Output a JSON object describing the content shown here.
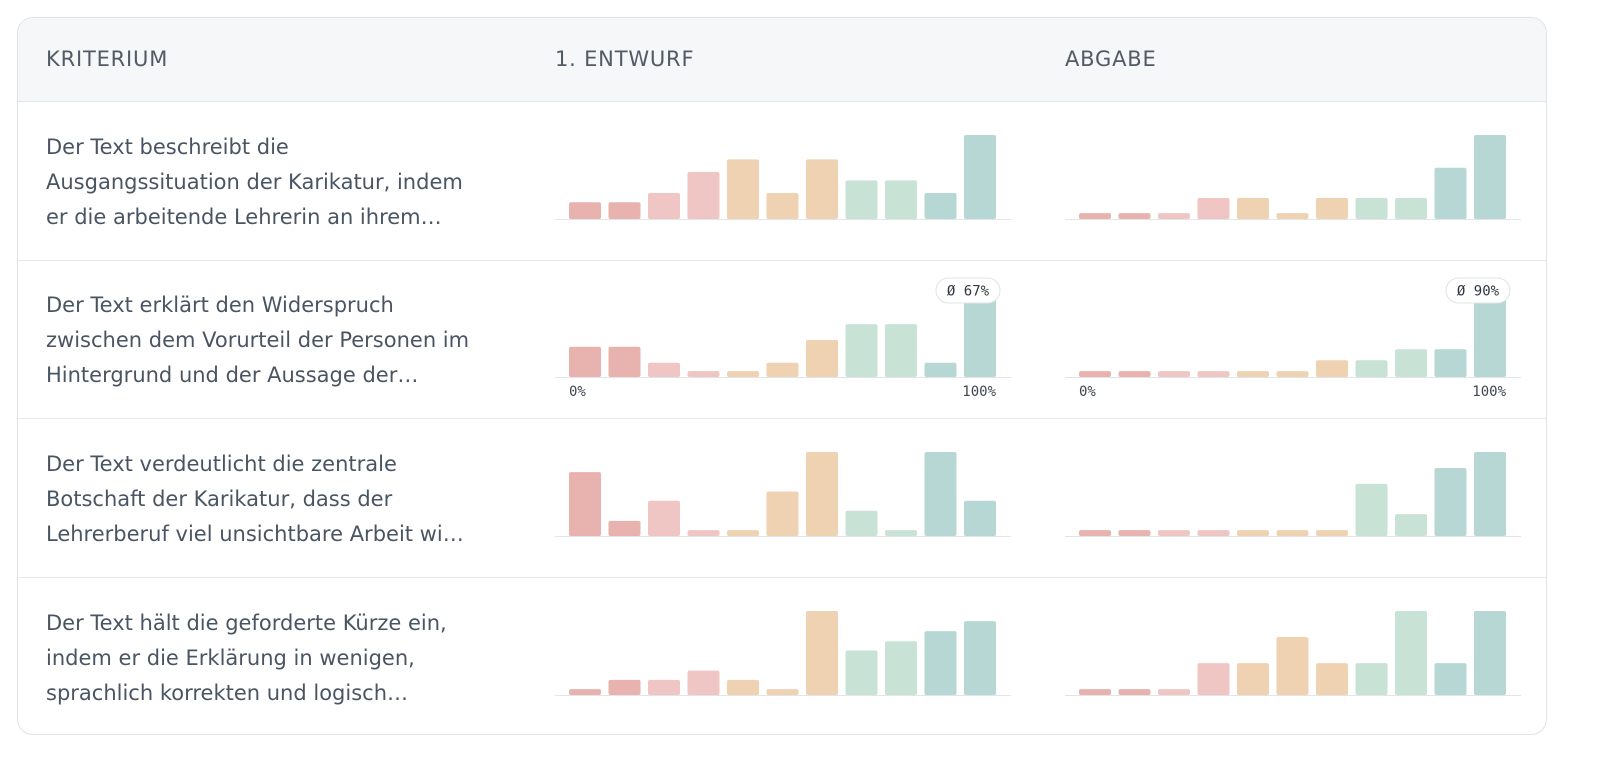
{
  "header": {
    "criterion": "KRITERIUM",
    "draft": "1. ENTWURF",
    "submission": "ABGABE"
  },
  "colors": {
    "bin_colors": [
      "#e8b2ae",
      "#e8b2ae",
      "#efc6c3",
      "#efc6c3",
      "#efd2b1",
      "#efd2b1",
      "#efd2b1",
      "#c9e2d6",
      "#c9e2d6",
      "#b7d7d4",
      "#b7d7d4"
    ],
    "baseline": "#e2e5e8"
  },
  "rows": [
    {
      "lines": [
        "Der Text beschreibt die",
        "Ausgangssituation der Karikatur, indem",
        "er die arbeitende Lehrerin an ihrem…"
      ]
    },
    {
      "lines": [
        "Der Text erklärt den Widerspruch",
        "zwischen dem Vorurteil der Personen im",
        "Hintergrund und der Aussage der…"
      ]
    },
    {
      "lines": [
        "Der Text verdeutlicht die zentrale",
        "Botschaft der Karikatur, dass der",
        "Lehrerberuf viel unsichtbare Arbeit wi…"
      ]
    },
    {
      "lines": [
        "Der Text hält die geforderte Kürze ein,",
        "indem er die Erklärung in wenigen,",
        "sprachlich korrekten und logisch…"
      ]
    }
  ],
  "chart_data": [
    {
      "type": "bar",
      "row": 0,
      "column": "1. ENTWURF",
      "categories": [
        "0%",
        "10%",
        "20%",
        "30%",
        "40%",
        "50%",
        "60%",
        "70%",
        "80%",
        "90%",
        "100%"
      ],
      "values": [
        2,
        2,
        3.1,
        5.6,
        7.1,
        3.1,
        7.1,
        4.6,
        4.6,
        3.1,
        10
      ],
      "ylim": [
        0,
        10
      ]
    },
    {
      "type": "bar",
      "row": 0,
      "column": "ABGABE",
      "categories": [
        "0%",
        "10%",
        "20%",
        "30%",
        "40%",
        "50%",
        "60%",
        "70%",
        "80%",
        "90%",
        "100%"
      ],
      "values": [
        0.7,
        0.7,
        0.7,
        2.5,
        2.5,
        0.7,
        2.5,
        2.5,
        2.5,
        6.1,
        10
      ],
      "ylim": [
        0,
        10
      ]
    },
    {
      "type": "bar",
      "row": 1,
      "column": "1. ENTWURF",
      "categories": [
        "0%",
        "10%",
        "20%",
        "30%",
        "40%",
        "50%",
        "60%",
        "70%",
        "80%",
        "90%",
        "100%"
      ],
      "values": [
        3.6,
        3.6,
        1.7,
        0.7,
        0.7,
        1.7,
        4.4,
        6.3,
        6.3,
        1.7,
        10
      ],
      "ylim": [
        0,
        10
      ],
      "xtick_labels": [
        "0%",
        "100%"
      ],
      "average_label": "Ø 67%"
    },
    {
      "type": "bar",
      "row": 1,
      "column": "ABGABE",
      "categories": [
        "0%",
        "10%",
        "20%",
        "30%",
        "40%",
        "50%",
        "60%",
        "70%",
        "80%",
        "90%",
        "100%"
      ],
      "values": [
        0.7,
        0.7,
        0.7,
        0.7,
        0.7,
        0.7,
        2,
        2,
        3.3,
        3.3,
        10
      ],
      "ylim": [
        0,
        10
      ],
      "xtick_labels": [
        "0%",
        "100%"
      ],
      "average_label": "Ø 90%"
    },
    {
      "type": "bar",
      "row": 2,
      "column": "1. ENTWURF",
      "categories": [
        "0%",
        "10%",
        "20%",
        "30%",
        "40%",
        "50%",
        "60%",
        "70%",
        "80%",
        "90%",
        "100%"
      ],
      "values": [
        7.6,
        1.8,
        4.2,
        0.7,
        0.7,
        5.3,
        10,
        3,
        0.7,
        10,
        4.2
      ],
      "ylim": [
        0,
        10
      ]
    },
    {
      "type": "bar",
      "row": 2,
      "column": "ABGABE",
      "categories": [
        "0%",
        "10%",
        "20%",
        "30%",
        "40%",
        "50%",
        "60%",
        "70%",
        "80%",
        "90%",
        "100%"
      ],
      "values": [
        0.7,
        0.7,
        0.7,
        0.7,
        0.7,
        0.7,
        0.7,
        6.2,
        2.6,
        8.1,
        10
      ],
      "ylim": [
        0,
        10
      ]
    },
    {
      "type": "bar",
      "row": 3,
      "column": "1. ENTWURF",
      "categories": [
        "0%",
        "10%",
        "20%",
        "30%",
        "40%",
        "50%",
        "60%",
        "70%",
        "80%",
        "90%",
        "100%"
      ],
      "values": [
        0.7,
        1.8,
        1.8,
        2.9,
        1.8,
        0.7,
        10,
        5.3,
        6.4,
        7.6,
        8.8
      ],
      "ylim": [
        0,
        10
      ]
    },
    {
      "type": "bar",
      "row": 3,
      "column": "ABGABE",
      "categories": [
        "0%",
        "10%",
        "20%",
        "30%",
        "40%",
        "50%",
        "60%",
        "70%",
        "80%",
        "90%",
        "100%"
      ],
      "values": [
        0.7,
        0.7,
        0.7,
        3.8,
        3.8,
        6.9,
        3.8,
        3.8,
        10,
        3.8,
        10
      ],
      "ylim": [
        0,
        10
      ]
    }
  ]
}
